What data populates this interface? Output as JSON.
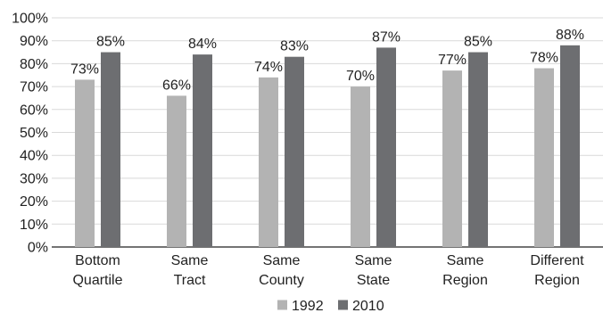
{
  "chart_data": {
    "type": "bar",
    "title": "",
    "xlabel": "",
    "ylabel": "",
    "ylim": [
      0,
      100
    ],
    "yticks": [
      "0%",
      "10%",
      "20%",
      "30%",
      "40%",
      "50%",
      "60%",
      "70%",
      "80%",
      "90%",
      "100%"
    ],
    "grid": true,
    "legend_position": "bottom",
    "categories": [
      [
        "Bottom",
        "Quartile"
      ],
      [
        "Same",
        "Tract"
      ],
      [
        "Same",
        "County"
      ],
      [
        "Same",
        "State"
      ],
      [
        "Same",
        "Region"
      ],
      [
        "Different",
        "Region"
      ]
    ],
    "series": [
      {
        "name": "1992",
        "color": "#b3b3b3",
        "values": [
          73,
          66,
          74,
          70,
          77,
          78
        ],
        "labels": [
          "73%",
          "66%",
          "74%",
          "70%",
          "77%",
          "78%"
        ]
      },
      {
        "name": "2010",
        "color": "#6d6e71",
        "values": [
          85,
          84,
          83,
          87,
          85,
          88
        ],
        "labels": [
          "85%",
          "84%",
          "83%",
          "87%",
          "85%",
          "88%"
        ]
      }
    ],
    "colors": {
      "grid": "#d9d9d9",
      "axis": "#222222",
      "text": "#222222"
    }
  }
}
